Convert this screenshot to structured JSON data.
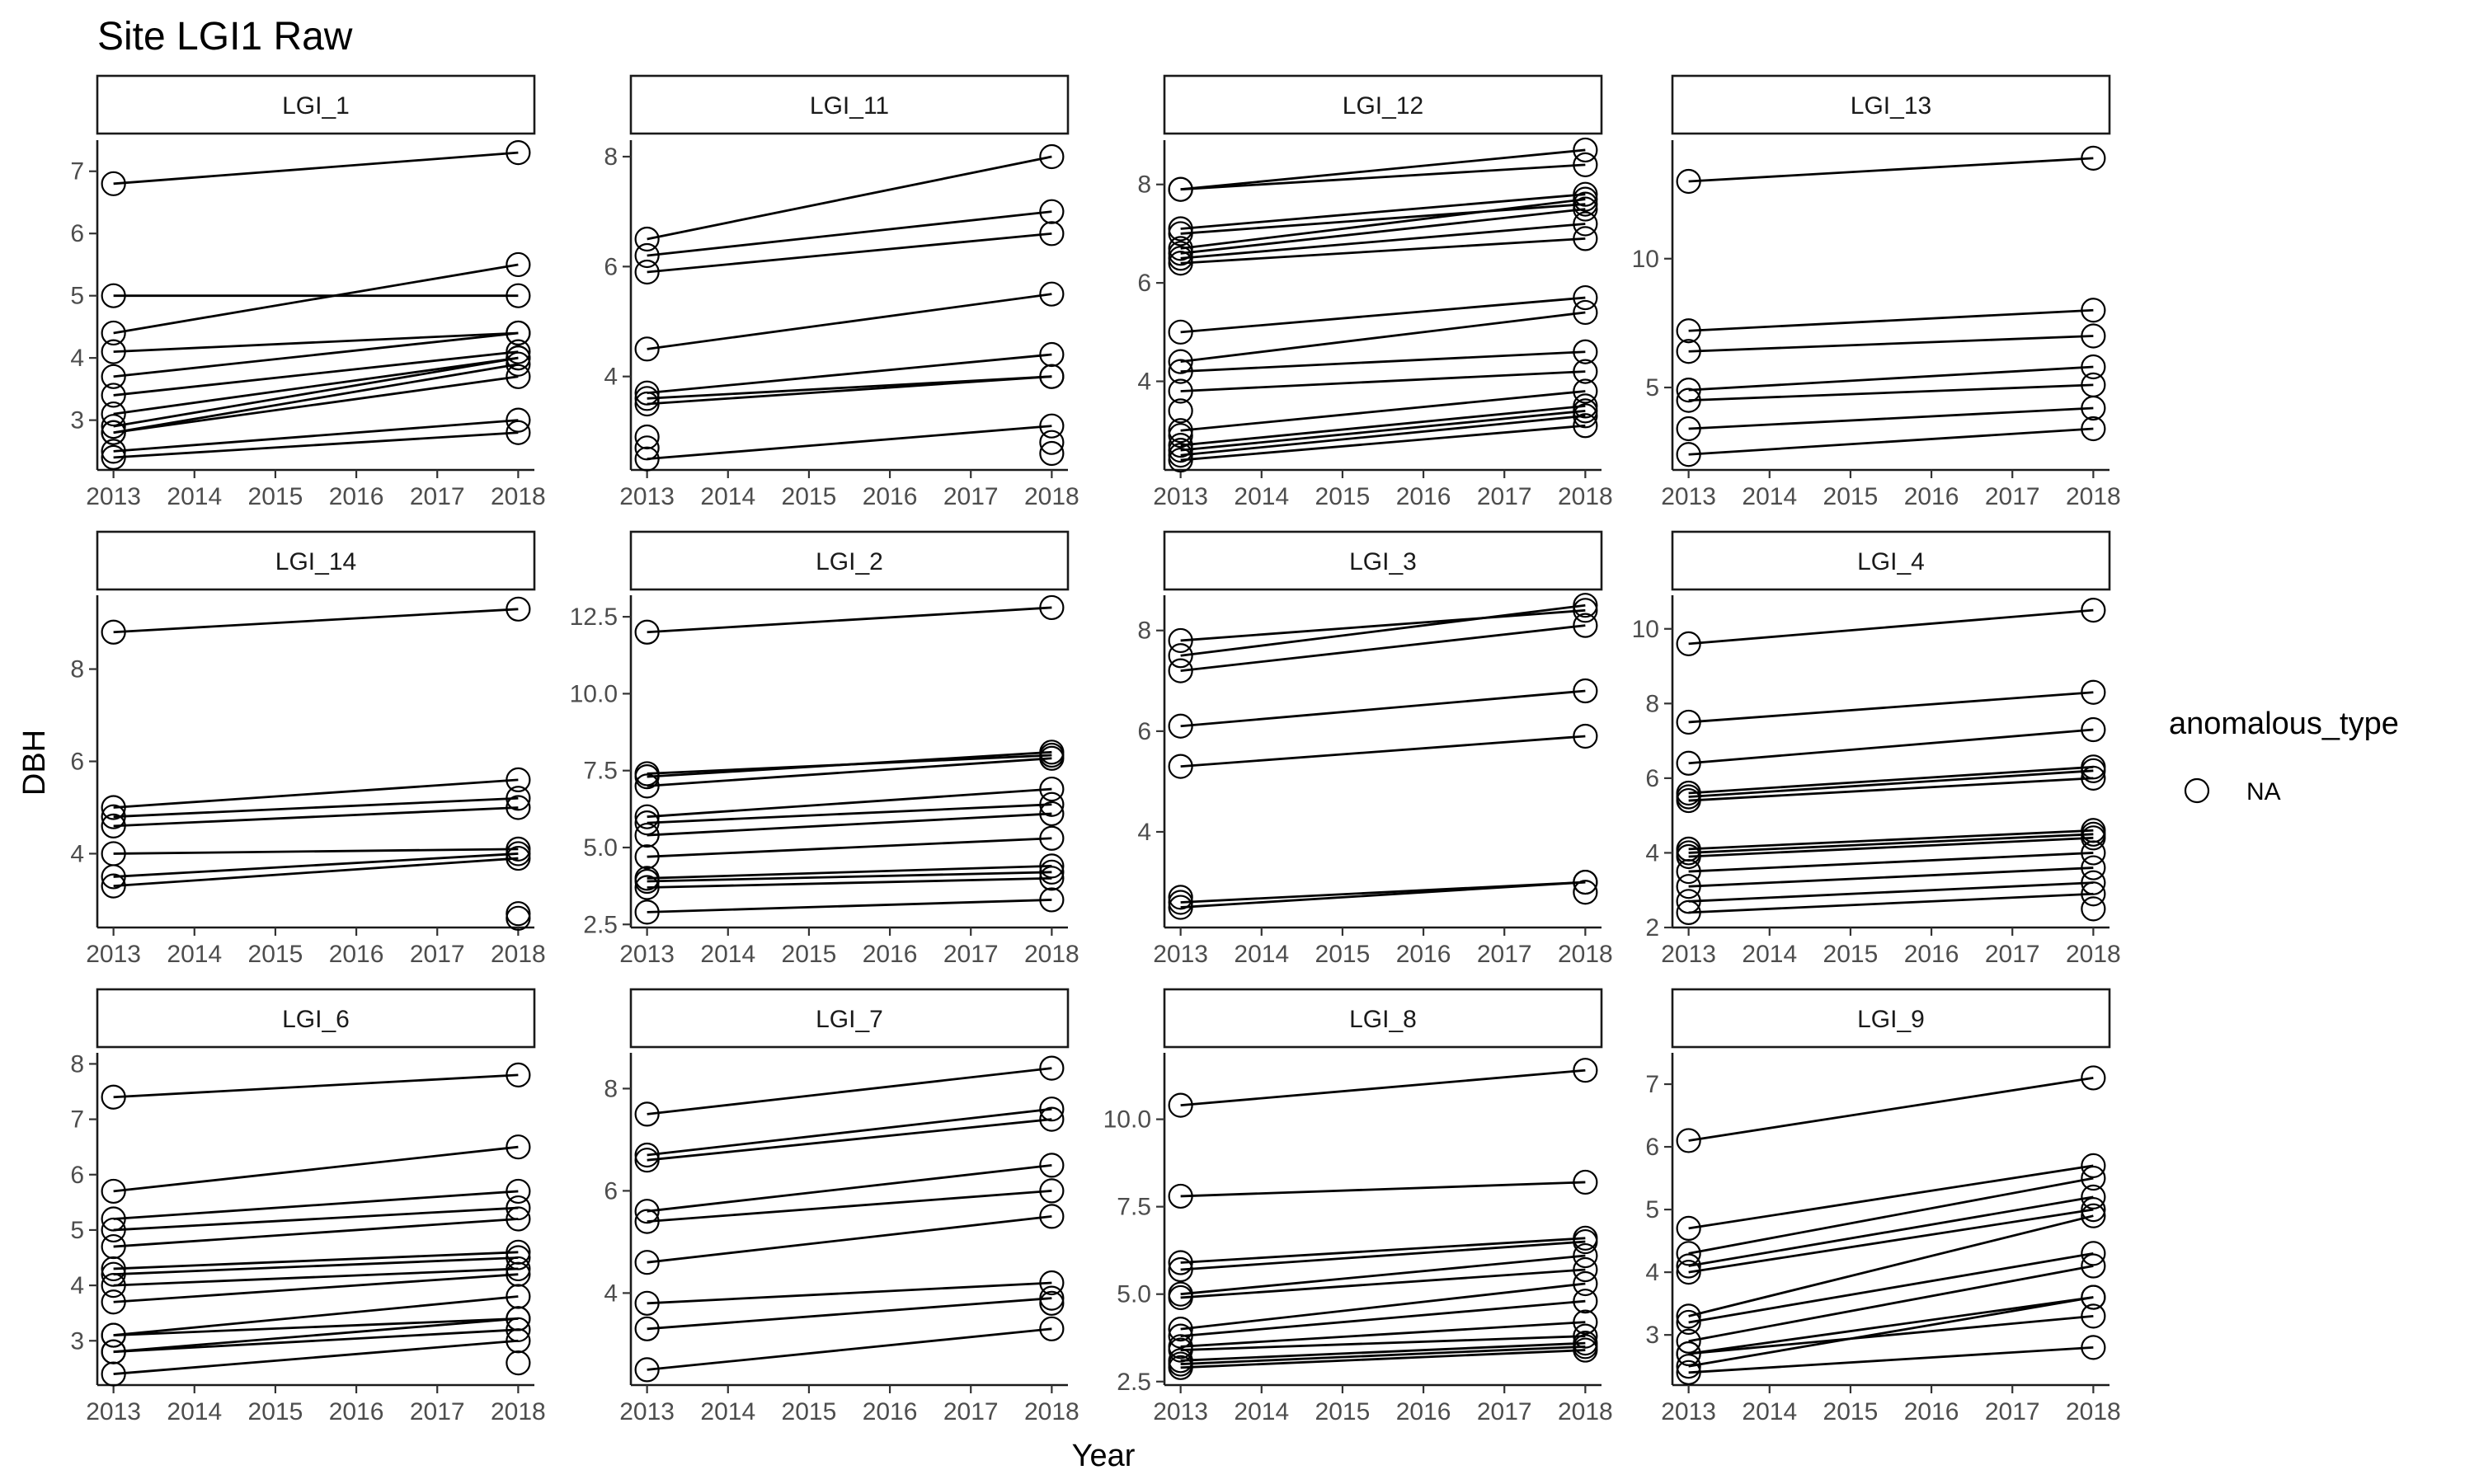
{
  "chart_data": {
    "type": "scatter",
    "title": "Site LGI1 Raw",
    "xlabel": "Year",
    "ylabel": "DBH",
    "x_ticks": [
      2013,
      2014,
      2015,
      2016,
      2017,
      2018
    ],
    "xlim": [
      2012.8,
      2018.2
    ],
    "grid": false,
    "legend": {
      "title": "anomalous_type",
      "entries": [
        "NA"
      ],
      "position": "right",
      "marker": "open-circle"
    },
    "facets": [
      {
        "name": "LGI_1",
        "ylim": [
          2.2,
          7.5
        ],
        "y_ticks": [
          3,
          4,
          5,
          6,
          7
        ],
        "y_tick_labels": [
          "3",
          "4",
          "5",
          "6",
          "7"
        ],
        "pairs": [
          [
            6.8,
            7.3
          ],
          [
            4.4,
            5.5
          ],
          [
            5.0,
            5.0
          ],
          [
            4.1,
            4.4
          ],
          [
            3.7,
            4.4
          ],
          [
            3.4,
            4.1
          ],
          [
            3.1,
            4.0
          ],
          [
            2.9,
            4.0
          ],
          [
            2.8,
            3.9
          ],
          [
            2.8,
            3.7
          ],
          [
            2.5,
            3.0
          ],
          [
            2.4,
            2.8
          ]
        ]
      },
      {
        "name": "LGI_11",
        "ylim": [
          2.3,
          8.3
        ],
        "y_ticks": [
          4,
          6,
          8
        ],
        "y_tick_labels": [
          "4",
          "6",
          "8"
        ],
        "pairs": [
          [
            6.5,
            8.0
          ],
          [
            6.2,
            7.0
          ],
          [
            5.9,
            6.6
          ],
          [
            4.5,
            5.5
          ],
          [
            3.7,
            4.4
          ],
          [
            3.6,
            4.0
          ],
          [
            3.5,
            4.0
          ],
          [
            2.5,
            3.1
          ]
        ],
        "singles": [
          [
            2013,
            2.9
          ],
          [
            2013,
            2.7
          ],
          [
            2018,
            2.8
          ],
          [
            2018,
            2.6
          ]
        ]
      },
      {
        "name": "LGI_12",
        "ylim": [
          2.2,
          8.9
        ],
        "y_ticks": [
          4,
          6,
          8
        ],
        "y_tick_labels": [
          "4",
          "6",
          "8"
        ],
        "pairs": [
          [
            7.9,
            8.7
          ],
          [
            7.9,
            8.4
          ],
          [
            7.1,
            7.8
          ],
          [
            7.0,
            7.6
          ],
          [
            6.7,
            7.7
          ],
          [
            6.6,
            7.5
          ],
          [
            6.5,
            7.2
          ],
          [
            6.4,
            6.9
          ],
          [
            5.0,
            5.7
          ],
          [
            4.4,
            5.4
          ],
          [
            4.2,
            4.6
          ],
          [
            3.8,
            4.2
          ],
          [
            3.0,
            3.8
          ],
          [
            2.7,
            3.5
          ],
          [
            2.6,
            3.4
          ],
          [
            2.5,
            3.3
          ],
          [
            2.4,
            3.1
          ]
        ],
        "singles": [
          [
            2013,
            3.4
          ],
          [
            2013,
            2.9
          ]
        ]
      },
      {
        "name": "LGI_13",
        "ylim": [
          1.8,
          14.6
        ],
        "y_ticks": [
          5,
          10
        ],
        "y_tick_labels": [
          "5",
          "10"
        ],
        "pairs": [
          [
            13.0,
            13.9
          ],
          [
            7.2,
            8.0
          ],
          [
            6.4,
            7.0
          ],
          [
            4.9,
            5.8
          ],
          [
            4.5,
            5.1
          ],
          [
            3.4,
            4.2
          ],
          [
            2.4,
            3.4
          ]
        ]
      },
      {
        "name": "LGI_14",
        "ylim": [
          2.4,
          9.6
        ],
        "y_ticks": [
          4,
          6,
          8
        ],
        "y_tick_labels": [
          "4",
          "6",
          "8"
        ],
        "pairs": [
          [
            8.8,
            9.3
          ],
          [
            5.0,
            5.6
          ],
          [
            4.8,
            5.2
          ],
          [
            4.6,
            5.0
          ],
          [
            4.0,
            4.1
          ],
          [
            3.5,
            4.0
          ],
          [
            3.3,
            3.9
          ]
        ],
        "singles": [
          [
            2018,
            2.7
          ],
          [
            2018,
            2.6
          ]
        ]
      },
      {
        "name": "LGI_2",
        "ylim": [
          2.4,
          13.2
        ],
        "y_ticks": [
          2.5,
          5.0,
          7.5,
          10.0,
          12.5
        ],
        "y_tick_labels": [
          "2.5",
          "5.0",
          "7.5",
          "10.0",
          "12.5"
        ],
        "pairs": [
          [
            12.0,
            12.8
          ],
          [
            7.4,
            8.0
          ],
          [
            7.3,
            8.1
          ],
          [
            7.0,
            7.9
          ],
          [
            6.0,
            6.9
          ],
          [
            5.8,
            6.4
          ],
          [
            5.4,
            6.1
          ],
          [
            4.7,
            5.3
          ],
          [
            4.0,
            4.4
          ],
          [
            3.9,
            4.2
          ],
          [
            3.7,
            4.0
          ],
          [
            2.9,
            3.3
          ]
        ]
      },
      {
        "name": "LGI_3",
        "ylim": [
          2.1,
          8.7
        ],
        "y_ticks": [
          4,
          6,
          8
        ],
        "y_tick_labels": [
          "4",
          "6",
          "8"
        ],
        "pairs": [
          [
            7.8,
            8.4
          ],
          [
            7.5,
            8.5
          ],
          [
            7.2,
            8.1
          ],
          [
            6.1,
            6.8
          ],
          [
            5.3,
            5.9
          ],
          [
            2.6,
            3.0
          ],
          [
            2.5,
            3.0
          ]
        ],
        "singles": [
          [
            2013,
            2.7
          ],
          [
            2018,
            2.8
          ]
        ]
      },
      {
        "name": "LGI_4",
        "ylim": [
          2.0,
          10.9
        ],
        "y_ticks": [
          2,
          4,
          6,
          8,
          10
        ],
        "y_tick_labels": [
          "2",
          "4",
          "6",
          "8",
          "10"
        ],
        "pairs": [
          [
            9.6,
            10.5
          ],
          [
            7.5,
            8.3
          ],
          [
            6.4,
            7.3
          ],
          [
            5.6,
            6.3
          ],
          [
            5.5,
            6.2
          ],
          [
            5.4,
            6.0
          ],
          [
            4.1,
            4.6
          ],
          [
            4.0,
            4.5
          ],
          [
            3.9,
            4.4
          ],
          [
            3.5,
            4.0
          ],
          [
            3.1,
            3.6
          ],
          [
            2.7,
            3.2
          ],
          [
            2.4,
            2.9
          ]
        ],
        "singles": [
          [
            2018,
            2.5
          ]
        ]
      },
      {
        "name": "LGI_6",
        "ylim": [
          2.2,
          8.2
        ],
        "y_ticks": [
          3,
          4,
          5,
          6,
          7,
          8
        ],
        "y_tick_labels": [
          "3",
          "4",
          "5",
          "6",
          "7",
          "8"
        ],
        "pairs": [
          [
            7.4,
            7.8
          ],
          [
            5.7,
            6.5
          ],
          [
            5.2,
            5.7
          ],
          [
            5.0,
            5.4
          ],
          [
            4.7,
            5.2
          ],
          [
            4.3,
            4.6
          ],
          [
            4.2,
            4.5
          ],
          [
            4.0,
            4.3
          ],
          [
            3.7,
            4.2
          ],
          [
            3.1,
            3.8
          ],
          [
            3.1,
            3.4
          ],
          [
            2.8,
            3.4
          ],
          [
            2.8,
            3.2
          ],
          [
            2.4,
            3.0
          ]
        ],
        "singles": [
          [
            2018,
            2.6
          ]
        ]
      },
      {
        "name": "LGI_7",
        "ylim": [
          2.2,
          8.7
        ],
        "y_ticks": [
          4,
          6,
          8
        ],
        "y_tick_labels": [
          "4",
          "6",
          "8"
        ],
        "pairs": [
          [
            7.5,
            8.4
          ],
          [
            6.7,
            7.6
          ],
          [
            6.6,
            7.4
          ],
          [
            5.6,
            6.5
          ],
          [
            5.4,
            6.0
          ],
          [
            4.6,
            5.5
          ],
          [
            3.8,
            4.2
          ],
          [
            3.3,
            3.9
          ],
          [
            2.5,
            3.3
          ]
        ],
        "singles": [
          [
            2018,
            3.8
          ]
        ]
      },
      {
        "name": "LGI_8",
        "ylim": [
          2.4,
          11.9
        ],
        "y_ticks": [
          2.5,
          5.0,
          7.5,
          10.0
        ],
        "y_tick_labels": [
          "2.5",
          "5.0",
          "7.5",
          "10.0"
        ],
        "pairs": [
          [
            10.4,
            11.4
          ],
          [
            7.8,
            8.2
          ],
          [
            5.9,
            6.6
          ],
          [
            5.7,
            6.5
          ],
          [
            5.0,
            6.1
          ],
          [
            4.9,
            5.7
          ],
          [
            4.0,
            5.3
          ],
          [
            3.8,
            4.8
          ],
          [
            3.5,
            4.2
          ],
          [
            3.4,
            3.8
          ],
          [
            3.1,
            3.6
          ],
          [
            3.0,
            3.5
          ],
          [
            2.9,
            3.4
          ]
        ]
      },
      {
        "name": "LGI_9",
        "ylim": [
          2.2,
          7.5
        ],
        "y_ticks": [
          3,
          4,
          5,
          6,
          7
        ],
        "y_tick_labels": [
          "3",
          "4",
          "5",
          "6",
          "7"
        ],
        "pairs": [
          [
            6.1,
            7.1
          ],
          [
            4.7,
            5.7
          ],
          [
            4.3,
            5.5
          ],
          [
            4.1,
            5.2
          ],
          [
            4.0,
            5.0
          ],
          [
            3.3,
            4.9
          ],
          [
            3.2,
            4.3
          ],
          [
            2.9,
            4.1
          ],
          [
            2.7,
            3.6
          ],
          [
            2.7,
            3.3
          ],
          [
            2.5,
            3.6
          ],
          [
            2.4,
            2.8
          ]
        ]
      }
    ]
  }
}
